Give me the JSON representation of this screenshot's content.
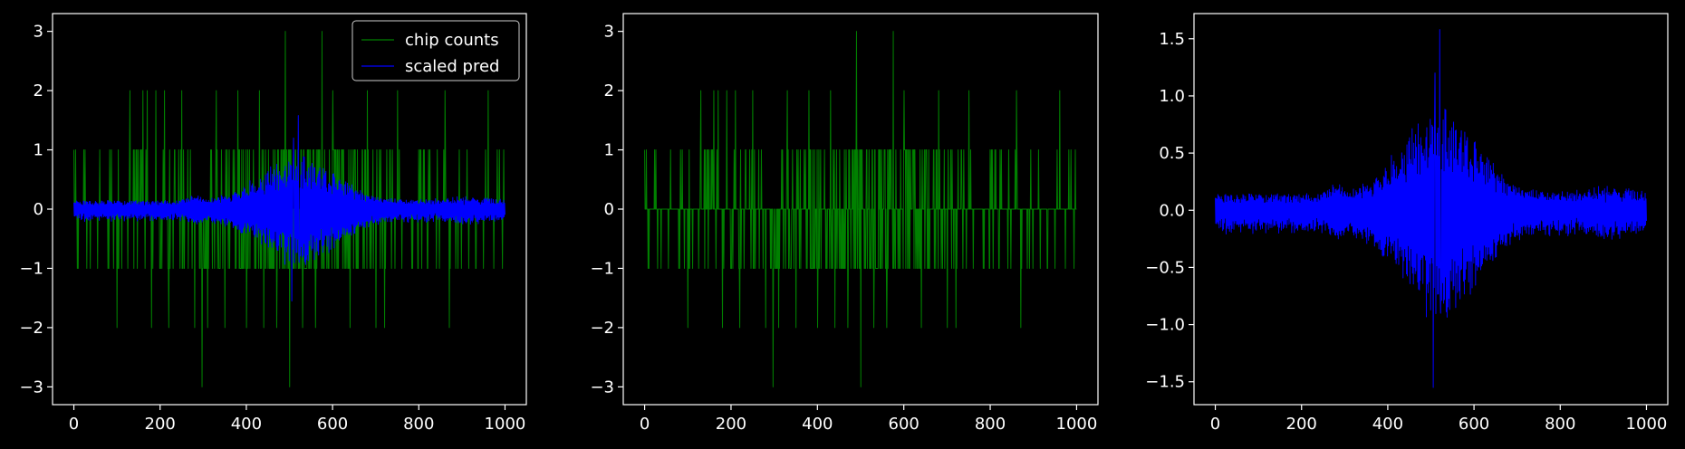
{
  "colors": {
    "background": "#000000",
    "axes": "#ffffff",
    "counts": "#008000",
    "pred": "#0000ff"
  },
  "chart_data": [
    {
      "type": "line",
      "x_range": [
        0,
        1000
      ],
      "ylim": [
        -3.3,
        3.3
      ],
      "xticks": [
        0,
        200,
        400,
        600,
        800,
        1000
      ],
      "yticks": [
        -3,
        -2,
        -1,
        0,
        1,
        2,
        3
      ],
      "legend": {
        "position": "top-right",
        "entries": [
          {
            "label": "chip counts",
            "color": "#008000"
          },
          {
            "label": "scaled pred",
            "color": "#0000ff"
          }
        ]
      },
      "series": [
        {
          "name": "chip counts",
          "kind": "counts",
          "extremes": [
            [
              100,
              2
            ],
            [
              130,
              2
            ],
            [
              160,
              2
            ],
            [
              170,
              2
            ],
            [
              190,
              2
            ],
            [
              210,
              2
            ],
            [
              250,
              2
            ],
            [
              330,
              2
            ],
            [
              380,
              2
            ],
            [
              430,
              2
            ],
            [
              470,
              2
            ],
            [
              490,
              3
            ],
            [
              500,
              3
            ],
            [
              575,
              3
            ],
            [
              600,
              2
            ],
            [
              680,
              2
            ],
            [
              750,
              2
            ],
            [
              860,
              2
            ],
            [
              960,
              2
            ],
            [
              100,
              -2
            ],
            [
              180,
              -2
            ],
            [
              220,
              -2
            ],
            [
              280,
              -2
            ],
            [
              297,
              -3
            ],
            [
              310,
              -2
            ],
            [
              350,
              -2
            ],
            [
              400,
              -2
            ],
            [
              440,
              -2
            ],
            [
              470,
              -2
            ],
            [
              500,
              -3
            ],
            [
              530,
              -2
            ],
            [
              560,
              -2
            ],
            [
              640,
              -2
            ],
            [
              700,
              -2
            ],
            [
              720,
              -2
            ],
            [
              870,
              -2
            ]
          ]
        },
        {
          "name": "scaled pred",
          "kind": "pred",
          "peak": [
            520,
            1.58
          ],
          "trough": [
            505,
            -1.55
          ]
        }
      ]
    },
    {
      "type": "line",
      "x_range": [
        0,
        1000
      ],
      "ylim": [
        -3.3,
        3.3
      ],
      "xticks": [
        0,
        200,
        400,
        600,
        800,
        1000
      ],
      "yticks": [
        -3,
        -2,
        -1,
        0,
        1,
        2,
        3
      ],
      "series": [
        {
          "kind": "counts",
          "extremes": [
            [
              100,
              2
            ],
            [
              130,
              2
            ],
            [
              160,
              2
            ],
            [
              170,
              2
            ],
            [
              190,
              2
            ],
            [
              210,
              2
            ],
            [
              250,
              2
            ],
            [
              330,
              2
            ],
            [
              380,
              2
            ],
            [
              430,
              2
            ],
            [
              470,
              2
            ],
            [
              490,
              3
            ],
            [
              500,
              3
            ],
            [
              575,
              3
            ],
            [
              600,
              2
            ],
            [
              680,
              2
            ],
            [
              750,
              2
            ],
            [
              860,
              2
            ],
            [
              960,
              2
            ],
            [
              100,
              -2
            ],
            [
              180,
              -2
            ],
            [
              220,
              -2
            ],
            [
              280,
              -2
            ],
            [
              297,
              -3
            ],
            [
              310,
              -2
            ],
            [
              350,
              -2
            ],
            [
              400,
              -2
            ],
            [
              440,
              -2
            ],
            [
              470,
              -2
            ],
            [
              500,
              -3
            ],
            [
              530,
              -2
            ],
            [
              560,
              -2
            ],
            [
              640,
              -2
            ],
            [
              700,
              -2
            ],
            [
              720,
              -2
            ],
            [
              870,
              -2
            ]
          ]
        }
      ]
    },
    {
      "type": "line",
      "x_range": [
        0,
        1000
      ],
      "ylim": [
        -1.7,
        1.72
      ],
      "xticks": [
        0,
        200,
        400,
        600,
        800,
        1000
      ],
      "yticks": [
        -1.5,
        -1.0,
        -0.5,
        0.0,
        0.5,
        1.0,
        1.5
      ],
      "series": [
        {
          "kind": "pred",
          "peak": [
            520,
            1.58
          ],
          "trough": [
            505,
            -1.55
          ]
        }
      ]
    }
  ]
}
